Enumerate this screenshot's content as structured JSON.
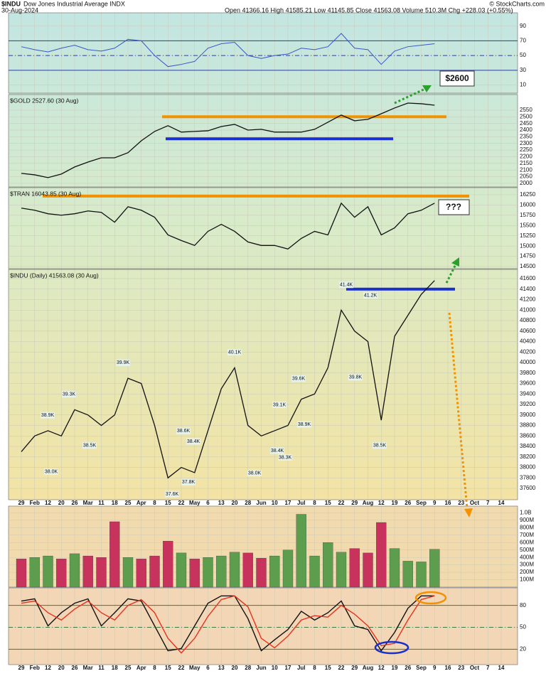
{
  "header": {
    "symbol": "$INDU",
    "name": "Dow Jones Industrial Average INDX",
    "date": "30-Aug-2024",
    "stats": "Open 41366.16 High 41585.21 Low 41145.85 Close 41563.08 Volume 510.3M Chg +228.03 (+0.55%)",
    "credit": "© StockCharts.com"
  },
  "chart_data": [
    {
      "type": "line",
      "color": "#3a56c8",
      "values": [
        62,
        58,
        55,
        60,
        64,
        58,
        56,
        60,
        72,
        70,
        50,
        35,
        38,
        42,
        60,
        66,
        68,
        50,
        46,
        50,
        52,
        60,
        58,
        62,
        80,
        60,
        58,
        38,
        56,
        62,
        64,
        66
      ],
      "ylim": [
        -1,
        108
      ],
      "yticks": [
        90,
        70,
        50,
        30,
        10
      ],
      "levels": [
        {
          "value": 70,
          "color": "#2b3f9e"
        },
        {
          "value": 50,
          "color": "#2b3f9e",
          "dash": true
        },
        {
          "value": 30,
          "color": "#2b3f9e"
        }
      ]
    },
    {
      "type": "line",
      "title": "$GOLD 2527.60 (30 Aug)",
      "color": "#111",
      "callout": "$2600",
      "values": [
        2075,
        2064,
        2043,
        2070,
        2123,
        2160,
        2192,
        2192,
        2230,
        2320,
        2390,
        2433,
        2385,
        2390,
        2395,
        2427,
        2443,
        2400,
        2406,
        2385,
        2385,
        2385,
        2406,
        2459,
        2513,
        2470,
        2481,
        2523,
        2566,
        2603,
        2598,
        2587
      ],
      "ylim": [
        1973,
        2667
      ],
      "yticks": [
        2550,
        2500,
        2450,
        2400,
        2350,
        2300,
        2250,
        2200,
        2150,
        2100,
        2050,
        2000
      ],
      "levels": [
        {
          "value": 2500,
          "color": "#f39200"
        },
        {
          "value": 2335,
          "color": "#1a2fd0"
        }
      ]
    },
    {
      "type": "line",
      "title": "$TRAN 16043.85 (30 Aug)",
      "color": "#111",
      "callout": "???",
      "values": [
        15924,
        15872,
        15787,
        15752,
        15787,
        15855,
        15821,
        15581,
        15958,
        15872,
        15701,
        15272,
        15135,
        15015,
        15358,
        15529,
        15358,
        15100,
        15015,
        15015,
        14929,
        15186,
        15358,
        15272,
        16044,
        15701,
        15958,
        15272,
        15443,
        15787,
        15872,
        16044
      ],
      "ylim": [
        14449,
        16422
      ],
      "yticks": [
        16250,
        16000,
        15750,
        15500,
        15250,
        15000,
        14750,
        14500
      ],
      "levels": [
        {
          "value": 16216,
          "color": "#f39200"
        }
      ]
    },
    {
      "type": "line",
      "title": "$INDU (Daily) 41563.08 (30 Aug)",
      "color": "#111",
      "categories": [
        "29",
        "Feb",
        "12",
        "20",
        "26",
        "Mar",
        "11",
        "18",
        "25",
        "Apr",
        "8",
        "15",
        "22",
        "May",
        "6",
        "13",
        "20",
        "28",
        "Jun",
        "10",
        "17",
        "Jul",
        "8",
        "15",
        "22",
        "29",
        "Aug",
        "12",
        "19",
        "26",
        "Sep",
        "9",
        "16",
        "23",
        "Oct",
        "7",
        "14"
      ],
      "values": [
        38300,
        38600,
        38700,
        38600,
        39100,
        39000,
        38800,
        39000,
        39700,
        39600,
        38800,
        37800,
        38000,
        37900,
        38700,
        39500,
        39900,
        38800,
        38600,
        38700,
        38800,
        39300,
        39400,
        39900,
        41000,
        40600,
        40400,
        38900,
        40500,
        40900,
        41300,
        41563,
        null,
        null,
        null,
        null,
        null
      ],
      "ylim": [
        37384,
        41776
      ],
      "yticks": [
        41600,
        41400,
        41200,
        41000,
        40800,
        40600,
        40400,
        40200,
        40000,
        39800,
        39600,
        39400,
        39200,
        39000,
        38800,
        38600,
        38400,
        38200,
        38000,
        37800,
        37600
      ],
      "levels": [
        {
          "value": 41400,
          "color": "#1a2fd0"
        }
      ],
      "annotations": [
        {
          "label": "39.9K",
          "value": 39900
        },
        {
          "label": "39.3K",
          "value": 39300
        },
        {
          "label": "38.9K",
          "value": 38900
        },
        {
          "label": "38.0K",
          "value": 38000
        },
        {
          "label": "38.5K",
          "value": 38500
        },
        {
          "label": "40.1K",
          "value": 40100
        },
        {
          "label": "38.6K",
          "value": 38600
        },
        {
          "label": "38.4K",
          "value": 38400
        },
        {
          "label": "37.6K",
          "value": 37600
        },
        {
          "label": "37.8K",
          "value": 37800
        },
        {
          "label": "38.0K",
          "value": 38000
        },
        {
          "label": "39.1K",
          "value": 39100
        },
        {
          "label": "38.4K",
          "value": 38400
        },
        {
          "label": "38.3K",
          "value": 38300
        },
        {
          "label": "39.6K",
          "value": 39600
        },
        {
          "label": "38.9K",
          "value": 38900
        },
        {
          "label": "41.4K",
          "value": 41400
        },
        {
          "label": "41.2K",
          "value": 41200
        },
        {
          "label": "39.8K",
          "value": 39800
        },
        {
          "label": "38.5K",
          "value": 38500
        }
      ]
    },
    {
      "type": "bar",
      "values": [
        380000000,
        400000000,
        420000000,
        380000000,
        450000000,
        420000000,
        400000000,
        880000000,
        400000000,
        380000000,
        420000000,
        620000000,
        460000000,
        380000000,
        400000000,
        420000000,
        470000000,
        460000000,
        390000000,
        420000000,
        500000000,
        980000000,
        420000000,
        600000000,
        470000000,
        520000000,
        460000000,
        870000000,
        520000000,
        350000000,
        340000000,
        510000000
      ],
      "colors": [
        "#c8335e",
        "#5d9e4e",
        "#5d9e4e",
        "#c8335e",
        "#5d9e4e",
        "#c8335e",
        "#c8335e",
        "#c8335e",
        "#5d9e4e",
        "#c8335e",
        "#c8335e",
        "#c8335e",
        "#5d9e4e",
        "#c8335e",
        "#5d9e4e",
        "#5d9e4e",
        "#5d9e4e",
        "#c8335e",
        "#c8335e",
        "#5d9e4e",
        "#5d9e4e",
        "#5d9e4e",
        "#5d9e4e",
        "#5d9e4e",
        "#5d9e4e",
        "#c8335e",
        "#c8335e",
        "#c8335e",
        "#5d9e4e",
        "#5d9e4e",
        "#5d9e4e",
        "#5d9e4e"
      ],
      "ylim": [
        0,
        1090000000
      ],
      "yticks": [
        {
          "value": 1000000000,
          "label": "1.0B"
        },
        {
          "value": 900000000,
          "label": "900M"
        },
        {
          "value": 800000000,
          "label": "800M"
        },
        {
          "value": 700000000,
          "label": "700M"
        },
        {
          "value": 600000000,
          "label": "600M"
        },
        {
          "value": 500000000,
          "label": "500M"
        },
        {
          "value": 400000000,
          "label": "400M"
        },
        {
          "value": 300000000,
          "label": "300M"
        },
        {
          "value": 200000000,
          "label": "200M"
        },
        {
          "value": 100000000,
          "label": "100M"
        }
      ]
    },
    {
      "type": "line",
      "categories": [
        "29",
        "Feb",
        "12",
        "20",
        "26",
        "Mar",
        "11",
        "18",
        "25",
        "Apr",
        "8",
        "15",
        "22",
        "May",
        "6",
        "13",
        "20",
        "28",
        "Jun",
        "10",
        "17",
        "Jul",
        "8",
        "15",
        "22",
        "29",
        "Aug",
        "12",
        "19",
        "26",
        "Sep",
        "9",
        "16",
        "23",
        "Oct",
        "7",
        "14"
      ],
      "series": [
        {
          "color": "#111",
          "values": [
            86,
            89,
            52,
            70,
            83,
            89,
            52,
            70,
            89,
            86,
            52,
            18,
            21,
            52,
            83,
            93,
            93,
            62,
            18,
            33,
            47,
            72,
            60,
            70,
            86,
            52,
            47,
            18,
            43,
            76,
            93,
            93,
            null,
            null,
            null,
            null,
            null
          ]
        },
        {
          "color": "#e8321e",
          "values": [
            83,
            86,
            70,
            60,
            75,
            86,
            70,
            60,
            80,
            88,
            70,
            35,
            15,
            35,
            65,
            88,
            93,
            78,
            35,
            22,
            38,
            60,
            66,
            64,
            80,
            68,
            52,
            25,
            28,
            60,
            88,
            93,
            null,
            null,
            null,
            null,
            null
          ]
        }
      ],
      "ylim": [
        -1,
        104
      ],
      "yticks": [
        80,
        50,
        20
      ],
      "levels": [
        {
          "value": 80,
          "color": "#3d7a3d"
        },
        {
          "value": 50,
          "color": "#3d7a3d",
          "dash": true
        },
        {
          "value": 20,
          "color": "#3d7a3d"
        }
      ]
    }
  ]
}
